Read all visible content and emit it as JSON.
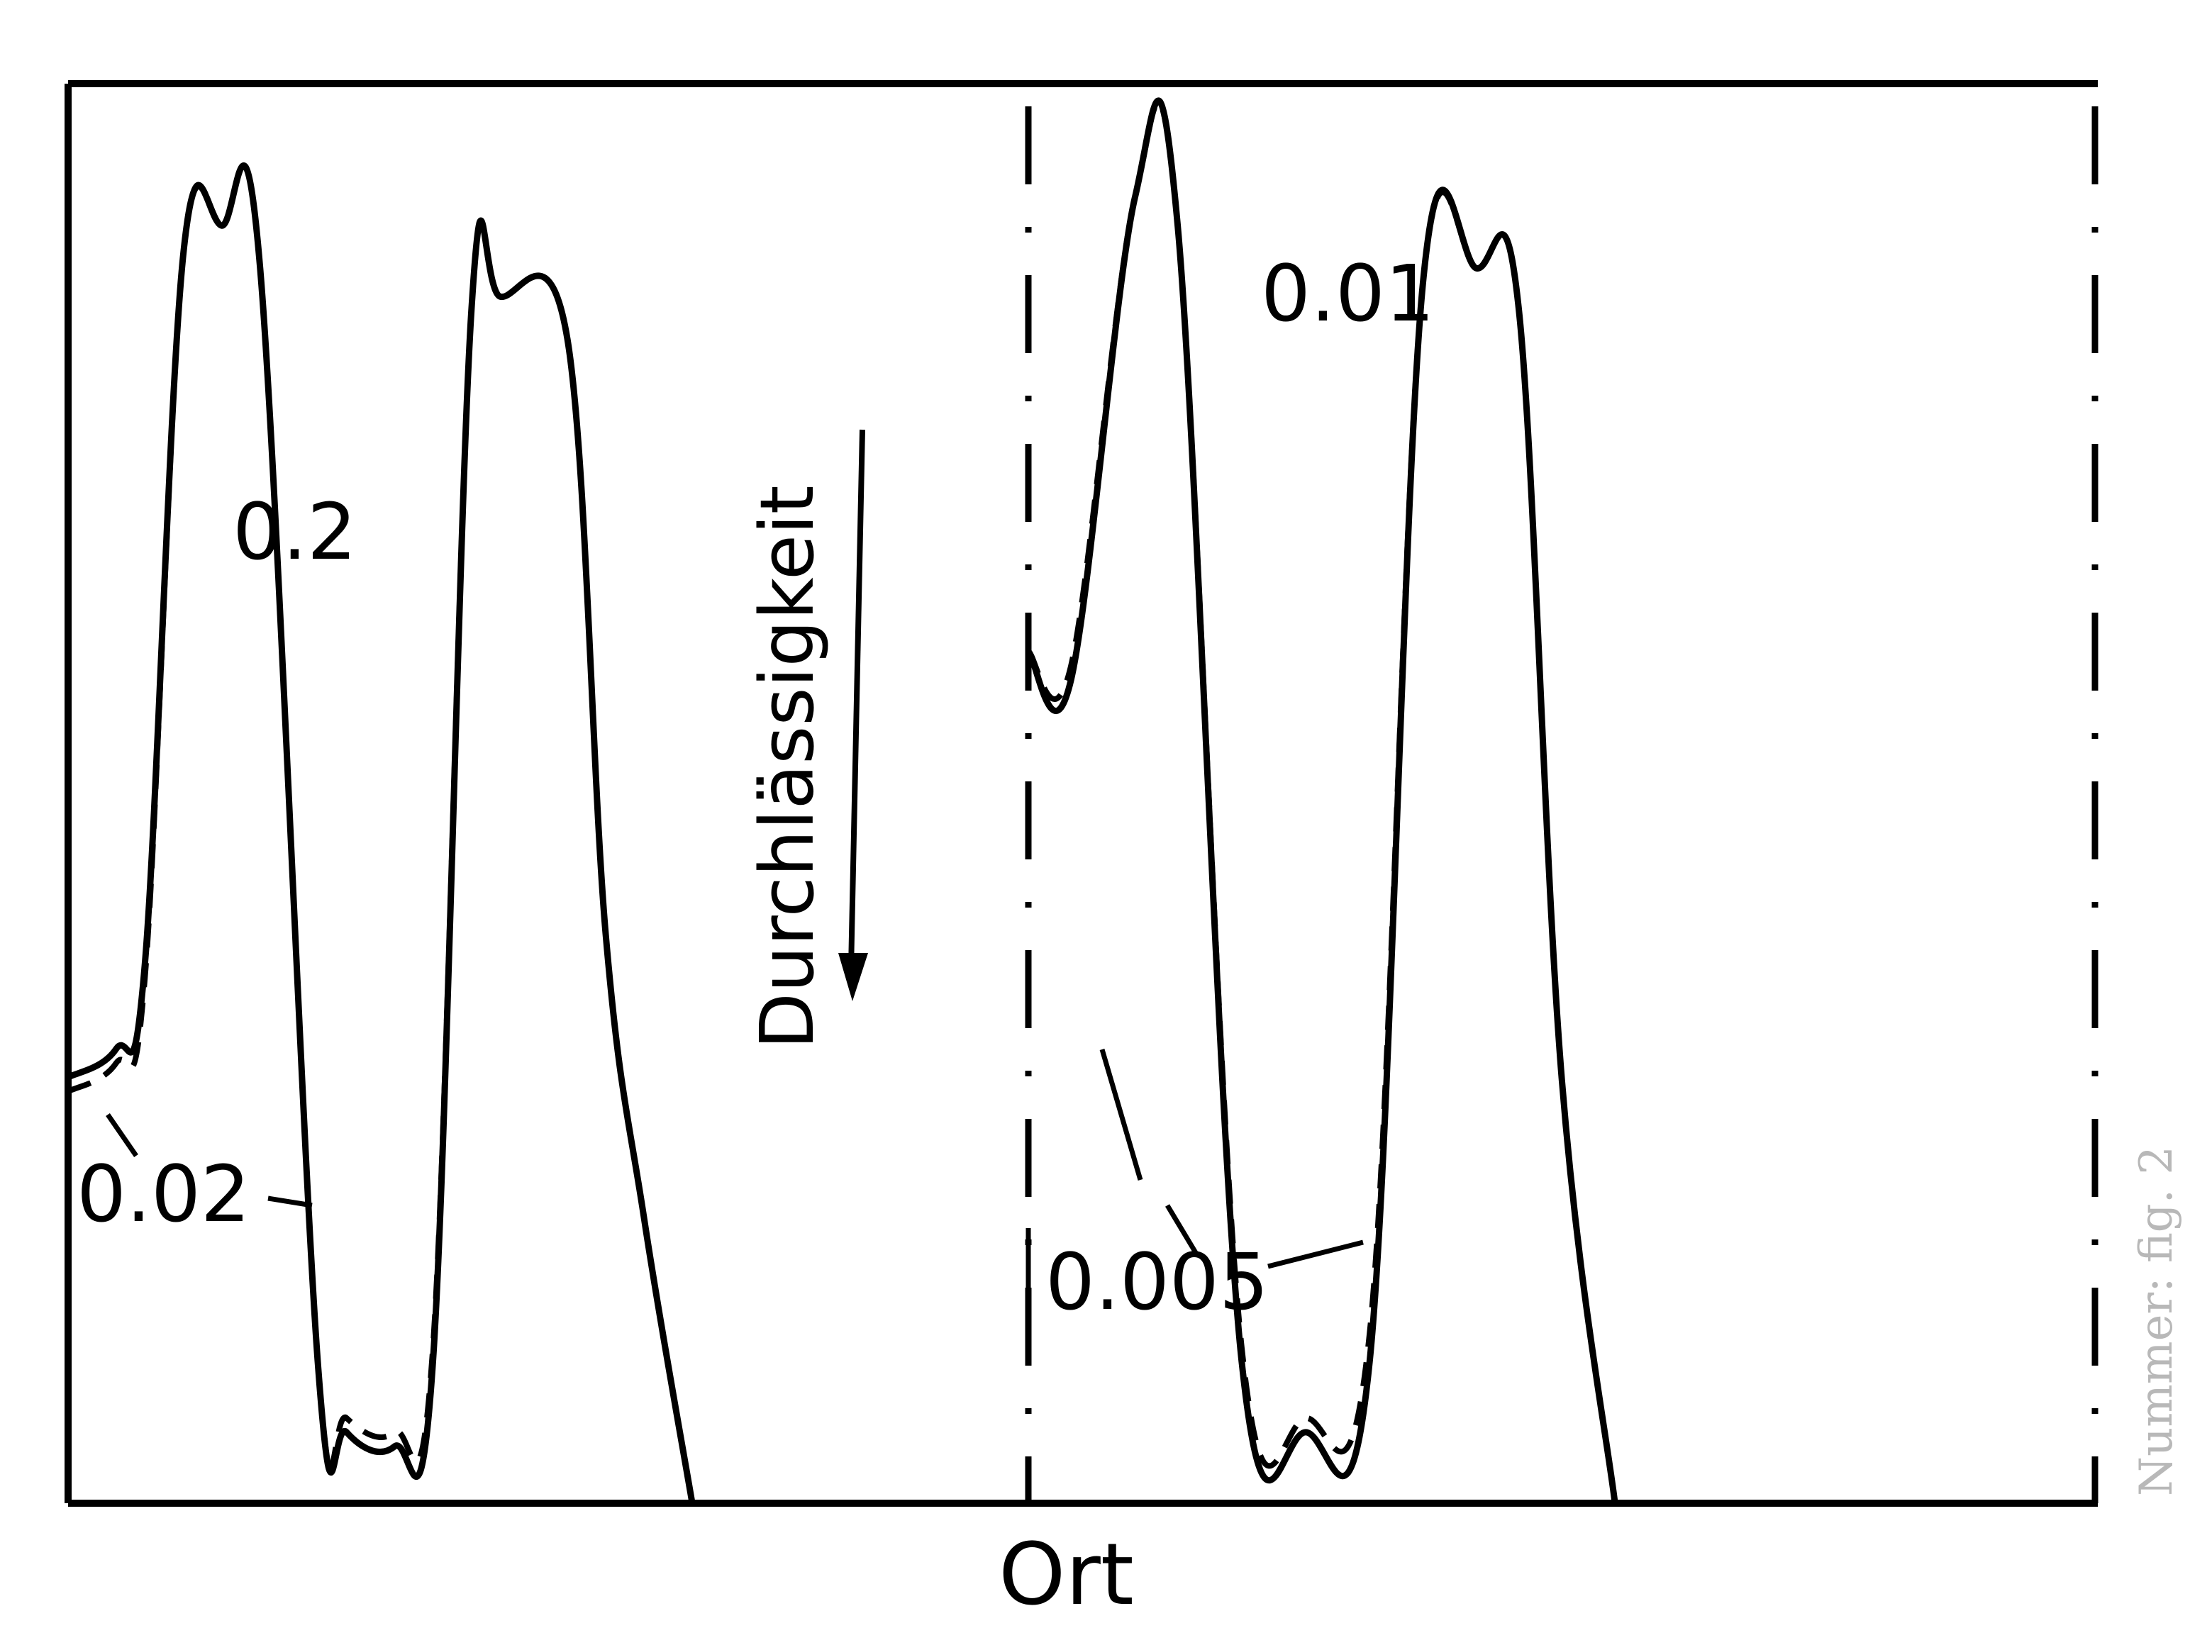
{
  "chart_data": {
    "type": "line",
    "title": "",
    "xlabel": "Ort",
    "ylabel": "Durchlässigkeit",
    "y_axis_direction": "downward",
    "grid": false,
    "annotations": [
      "0.2",
      "0.02",
      "0.01",
      "0.005"
    ],
    "panels": [
      {
        "series": [
          {
            "name": "0.2",
            "style": "solid",
            "x": [
              0.0,
              0.05,
              0.08,
              0.12,
              0.16,
              0.2,
              0.26,
              0.29,
              0.34,
              0.38,
              0.42,
              0.45,
              0.52,
              0.56,
              0.6,
              0.65
            ],
            "y": [
              0.3,
              0.32,
              0.38,
              0.88,
              0.9,
              0.87,
              0.1,
              0.05,
              0.04,
              0.1,
              0.84,
              0.85,
              0.82,
              0.4,
              0.2,
              0.0
            ]
          },
          {
            "name": "0.02",
            "style": "dashed",
            "x": [
              0.0,
              0.05,
              0.08,
              0.12,
              0.16,
              0.2,
              0.26,
              0.29,
              0.34,
              0.38,
              0.42,
              0.45,
              0.52,
              0.56,
              0.6,
              0.65
            ],
            "y": [
              0.29,
              0.31,
              0.37,
              0.88,
              0.9,
              0.87,
              0.1,
              0.06,
              0.05,
              0.11,
              0.84,
              0.85,
              0.82,
              0.4,
              0.2,
              0.0
            ]
          }
        ]
      },
      {
        "series": [
          {
            "name": "0.01",
            "style": "solid",
            "x": [
              0.0,
              0.04,
              0.1,
              0.14,
              0.2,
              0.26,
              0.32,
              0.37,
              0.42,
              0.46,
              0.5,
              0.55
            ],
            "y": [
              0.6,
              0.58,
              0.92,
              0.9,
              0.1,
              0.05,
              0.1,
              0.86,
              0.87,
              0.84,
              0.3,
              0.0
            ]
          },
          {
            "name": "0.005",
            "style": "dashed",
            "x": [
              0.0,
              0.04,
              0.1,
              0.14,
              0.2,
              0.26,
              0.32,
              0.37,
              0.42,
              0.46,
              0.5,
              0.55
            ],
            "y": [
              0.6,
              0.59,
              0.92,
              0.9,
              0.11,
              0.06,
              0.12,
              0.86,
              0.87,
              0.84,
              0.3,
              0.0
            ]
          }
        ]
      }
    ]
  },
  "margin_note": "Nummer: fig. 2"
}
